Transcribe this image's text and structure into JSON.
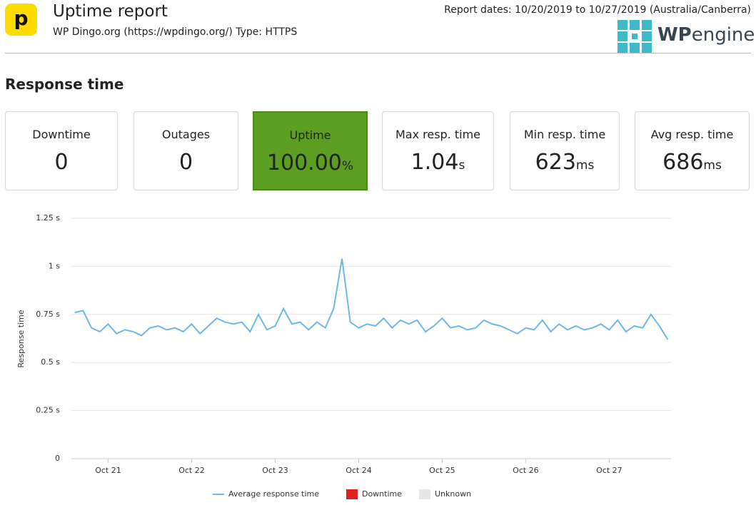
{
  "header": {
    "logo_letter": "p",
    "title": "Uptime report",
    "subtitle": "WP Dingo.org (https://wpdingo.org/) Type: HTTPS",
    "report_dates": "Report dates: 10/20/2019 to 10/27/2019 (Australia/Canberra)",
    "brand_bold": "WP",
    "brand_light": "engine"
  },
  "section_title": "Response time",
  "cards": [
    {
      "label": "Downtime",
      "value": "0"
    },
    {
      "label": "Outages",
      "value": "0"
    },
    {
      "label": "Uptime",
      "value": "100.00",
      "unit": "%"
    },
    {
      "label": "Max resp. time",
      "value": "1.04",
      "unit": "s"
    },
    {
      "label": "Min resp. time",
      "value": "623",
      "unit": "ms"
    },
    {
      "label": "Avg resp. time",
      "value": "686",
      "unit": "ms"
    }
  ],
  "chart_data": {
    "type": "line",
    "y_label": "Response time",
    "x": [
      20.6,
      20.7,
      20.8,
      20.9,
      21.0,
      21.1,
      21.2,
      21.3,
      21.4,
      21.5,
      21.6,
      21.7,
      21.8,
      21.9,
      22.0,
      22.1,
      22.2,
      22.3,
      22.4,
      22.5,
      22.6,
      22.7,
      22.8,
      22.9,
      23.0,
      23.1,
      23.2,
      23.3,
      23.4,
      23.5,
      23.6,
      23.7,
      23.8,
      23.9,
      24.0,
      24.1,
      24.2,
      24.3,
      24.4,
      24.5,
      24.6,
      24.7,
      24.8,
      24.9,
      25.0,
      25.1,
      25.2,
      25.3,
      25.4,
      25.5,
      25.6,
      25.7,
      25.8,
      25.9,
      26.0,
      26.1,
      26.2,
      26.3,
      26.4,
      26.5,
      26.6,
      26.7,
      26.8,
      26.9,
      27.0,
      27.1,
      27.2,
      27.3,
      27.4,
      27.5,
      27.6,
      27.7
    ],
    "series": [
      {
        "name": "Average response time",
        "color": "#6cb8ea",
        "values": [
          0.76,
          0.77,
          0.68,
          0.66,
          0.7,
          0.65,
          0.67,
          0.66,
          0.64,
          0.68,
          0.69,
          0.67,
          0.68,
          0.66,
          0.7,
          0.65,
          0.69,
          0.73,
          0.71,
          0.7,
          0.71,
          0.66,
          0.75,
          0.67,
          0.69,
          0.78,
          0.7,
          0.71,
          0.67,
          0.71,
          0.68,
          0.78,
          1.04,
          0.71,
          0.68,
          0.7,
          0.69,
          0.73,
          0.68,
          0.72,
          0.7,
          0.72,
          0.66,
          0.69,
          0.73,
          0.68,
          0.69,
          0.67,
          0.68,
          0.72,
          0.7,
          0.69,
          0.67,
          0.65,
          0.68,
          0.67,
          0.72,
          0.66,
          0.7,
          0.67,
          0.69,
          0.67,
          0.68,
          0.7,
          0.67,
          0.72,
          0.66,
          0.69,
          0.68,
          0.75,
          0.69,
          0.62
        ]
      }
    ],
    "legend_extra": [
      {
        "name": "Downtime",
        "color": "#e02020"
      },
      {
        "name": "Unknown",
        "color": "#e6e6e6"
      }
    ],
    "xlim": [
      20.56,
      27.74
    ],
    "xticks": [
      {
        "value": 21,
        "label": "Oct 21"
      },
      {
        "value": 22,
        "label": "Oct 22"
      },
      {
        "value": 23,
        "label": "Oct 23"
      },
      {
        "value": 24,
        "label": "Oct 24"
      },
      {
        "value": 25,
        "label": "Oct 25"
      },
      {
        "value": 26,
        "label": "Oct 26"
      },
      {
        "value": 27,
        "label": "Oct 27"
      }
    ],
    "ylim": [
      0,
      1.25
    ],
    "yticks": [
      0,
      {
        "value": 0.25,
        "label": "0.25 s"
      },
      {
        "value": 0.5,
        "label": "0.5 s"
      },
      {
        "value": 0.75,
        "label": "0.75 s"
      },
      {
        "value": 1,
        "label": "1 s"
      },
      {
        "value": 1.25,
        "label": "1.25 s"
      }
    ],
    "grid": true
  }
}
